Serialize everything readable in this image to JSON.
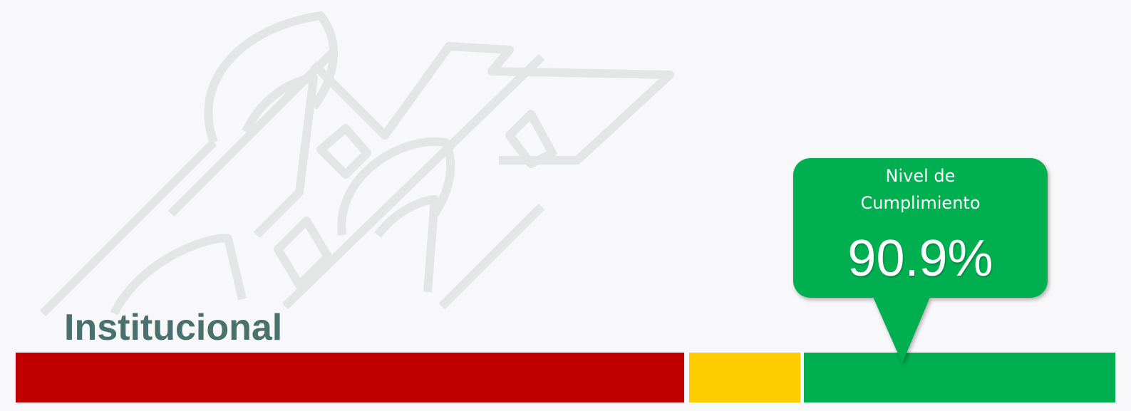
{
  "title": "Institucional",
  "indicator": {
    "label": "Nivel de Cumplimiento",
    "value": "90.9%"
  }
}
